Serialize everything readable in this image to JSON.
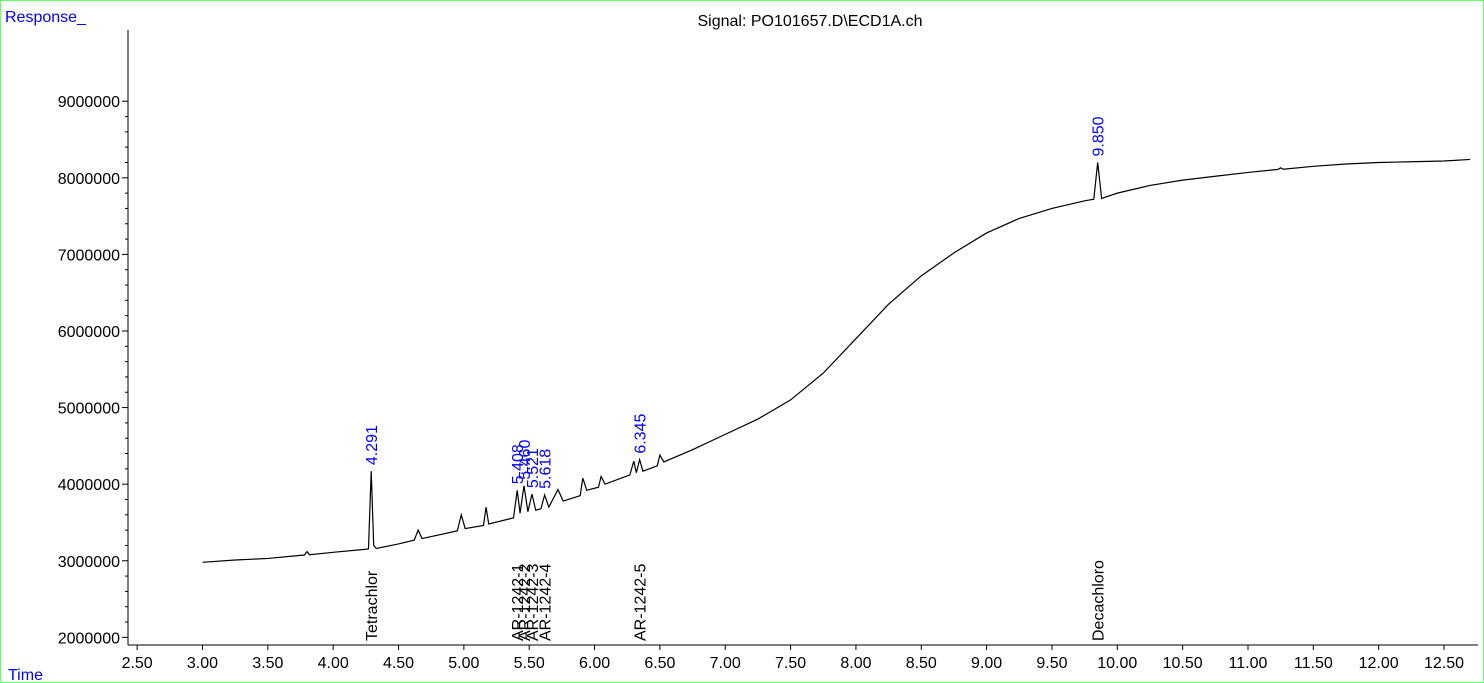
{
  "chart_data": {
    "type": "line",
    "title": "Signal: PO101657.D\\ECD1A.ch",
    "y_label": "Response_",
    "x_label": "Time",
    "color": "#000000",
    "label_color": "#0000ff",
    "x": [
      3.0,
      3.25,
      3.5,
      3.75,
      3.78,
      3.8,
      3.82,
      4.0,
      4.25,
      4.27,
      4.291,
      4.31,
      4.33,
      4.5,
      4.62,
      4.65,
      4.68,
      4.95,
      4.98,
      5.01,
      5.15,
      5.17,
      5.19,
      5.38,
      5.408,
      5.43,
      5.46,
      5.49,
      5.521,
      5.55,
      5.59,
      5.618,
      5.65,
      5.72,
      5.76,
      5.89,
      5.91,
      5.94,
      6.03,
      6.05,
      6.08,
      6.27,
      6.3,
      6.32,
      6.345,
      6.37,
      6.48,
      6.5,
      6.53,
      6.75,
      7.0,
      7.25,
      7.5,
      7.75,
      8.0,
      8.25,
      8.5,
      8.75,
      9.0,
      9.25,
      9.5,
      9.75,
      9.82,
      9.85,
      9.88,
      10.0,
      10.25,
      10.5,
      10.75,
      11.0,
      11.23,
      11.25,
      11.27,
      11.5,
      11.75,
      12.0,
      12.25,
      12.5,
      12.7
    ],
    "values": [
      2980000,
      3010000,
      3030000,
      3070000,
      3075000,
      3120000,
      3078000,
      3110000,
      3150000,
      3155000,
      4170000,
      3200000,
      3160000,
      3220000,
      3270000,
      3400000,
      3290000,
      3390000,
      3600000,
      3420000,
      3460000,
      3700000,
      3480000,
      3560000,
      3920000,
      3620000,
      3980000,
      3640000,
      3870000,
      3660000,
      3680000,
      3860000,
      3700000,
      3930000,
      3780000,
      3850000,
      4080000,
      3920000,
      3960000,
      4100000,
      4000000,
      4120000,
      4300000,
      4150000,
      4320000,
      4170000,
      4240000,
      4380000,
      4290000,
      4450000,
      4650000,
      4850000,
      5100000,
      5450000,
      5900000,
      6350000,
      6720000,
      7020000,
      7280000,
      7470000,
      7600000,
      7700000,
      7720000,
      8200000,
      7730000,
      7800000,
      7900000,
      7970000,
      8020000,
      8070000,
      8110000,
      8130000,
      8112000,
      8150000,
      8180000,
      8200000,
      8210000,
      8220000,
      8240000
    ],
    "xlim": [
      2.43,
      12.76
    ],
    "ylim": [
      1900000,
      9930000
    ],
    "xticks": [
      {
        "value": 2.5,
        "label": "2.50"
      },
      {
        "value": 3,
        "label": "3.00"
      },
      {
        "value": 3.5,
        "label": "3.50"
      },
      {
        "value": 4,
        "label": "4.00"
      },
      {
        "value": 4.5,
        "label": "4.50"
      },
      {
        "value": 5,
        "label": "5.00"
      },
      {
        "value": 5.5,
        "label": "5.50"
      },
      {
        "value": 6,
        "label": "6.00"
      },
      {
        "value": 6.5,
        "label": "6.50"
      },
      {
        "value": 7,
        "label": "7.00"
      },
      {
        "value": 7.5,
        "label": "7.50"
      },
      {
        "value": 8,
        "label": "8.00"
      },
      {
        "value": 8.5,
        "label": "8.50"
      },
      {
        "value": 9,
        "label": "9.00"
      },
      {
        "value": 9.5,
        "label": "9.50"
      },
      {
        "value": 10,
        "label": "10.00"
      },
      {
        "value": 10.5,
        "label": "10.50"
      },
      {
        "value": 11,
        "label": "11.00"
      },
      {
        "value": 11.5,
        "label": "11.50"
      },
      {
        "value": 12,
        "label": "12.00"
      },
      {
        "value": 12.5,
        "label": "12.50"
      }
    ],
    "yticks": [
      2000000,
      3000000,
      4000000,
      5000000,
      6000000,
      7000000,
      8000000,
      9000000
    ],
    "peaks": [
      {
        "x": 4.291,
        "label": "4.291",
        "compound": "Tetrachlor"
      },
      {
        "x": 5.408,
        "label": "5.408",
        "compound": "AR-1242-1"
      },
      {
        "x": 5.46,
        "label": "5.460",
        "compound": "AR-1242-2"
      },
      {
        "x": 5.521,
        "label": "5.521",
        "compound": "AR-1242-3"
      },
      {
        "x": 5.618,
        "label": "5.618",
        "compound": "AR-1242-4"
      },
      {
        "x": 6.345,
        "label": "6.345",
        "compound": "AR-1242-5"
      },
      {
        "x": 9.85,
        "label": "9.850",
        "compound": "Decachloro"
      }
    ]
  }
}
